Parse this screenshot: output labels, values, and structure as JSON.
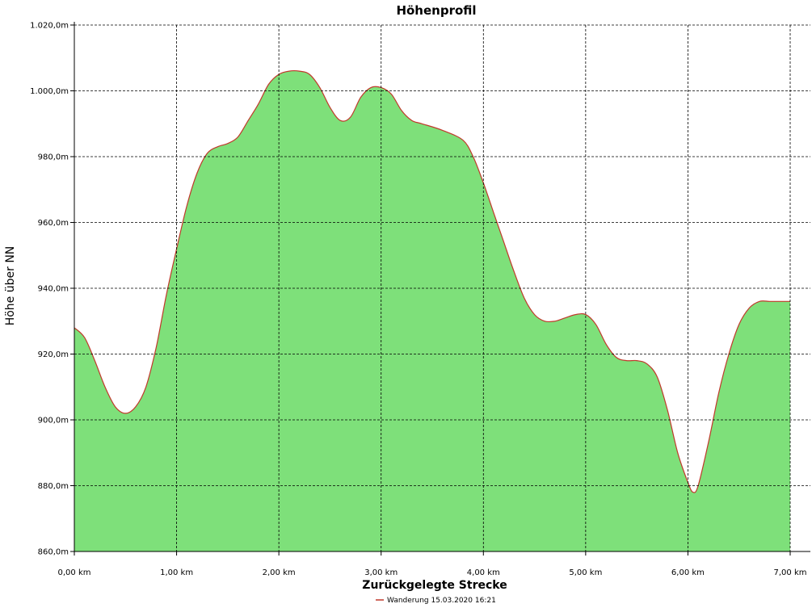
{
  "chart_data": {
    "type": "area",
    "title": "Höhenprofil",
    "xlabel": "Zurückgelegte Strecke",
    "ylabel": "Höhe über NN",
    "xlim": [
      0,
      7
    ],
    "ylim": [
      860,
      1020
    ],
    "x_ticks": [
      0,
      1,
      2,
      3,
      4,
      5,
      6,
      7
    ],
    "x_tick_labels": [
      "0,00 km",
      "1,00 km",
      "2,00 km",
      "3,00 km",
      "4,00 km",
      "5,00 km",
      "6,00 km",
      "7,00 km"
    ],
    "y_ticks": [
      860,
      880,
      900,
      920,
      940,
      960,
      980,
      1000,
      1020
    ],
    "y_tick_labels": [
      "860,0m",
      "880,0m",
      "900,0m",
      "920,0m",
      "940,0m",
      "960,0m",
      "980,0m",
      "1.000,0m",
      "1.020,0m"
    ],
    "grid": true,
    "legend_position": "bottom",
    "series": [
      {
        "name": "Wanderung 15.03.2020 16:21",
        "color": "#c0392b",
        "x": [
          0.0,
          0.1,
          0.2,
          0.3,
          0.4,
          0.5,
          0.6,
          0.7,
          0.8,
          0.9,
          1.0,
          1.1,
          1.2,
          1.3,
          1.4,
          1.5,
          1.6,
          1.7,
          1.8,
          1.9,
          2.0,
          2.1,
          2.2,
          2.3,
          2.4,
          2.5,
          2.6,
          2.7,
          2.8,
          2.9,
          3.0,
          3.1,
          3.2,
          3.3,
          3.4,
          3.6,
          3.8,
          3.9,
          4.0,
          4.1,
          4.2,
          4.3,
          4.4,
          4.5,
          4.6,
          4.7,
          4.8,
          4.9,
          5.0,
          5.1,
          5.2,
          5.3,
          5.4,
          5.5,
          5.6,
          5.7,
          5.8,
          5.9,
          6.0,
          6.05,
          6.1,
          6.2,
          6.3,
          6.4,
          6.5,
          6.6,
          6.7,
          6.8,
          6.9,
          7.0
        ],
        "values": [
          928,
          925,
          918,
          910,
          904,
          902,
          904,
          910,
          922,
          938,
          952,
          965,
          975,
          981,
          983,
          984,
          986,
          991,
          996,
          1002,
          1005,
          1006,
          1006,
          1005,
          1001,
          995,
          991,
          992,
          998,
          1001,
          1001,
          999,
          994,
          991,
          990,
          988,
          985,
          980,
          972,
          963,
          954,
          945,
          937,
          932,
          930,
          930,
          931,
          932,
          932,
          929,
          923,
          919,
          918,
          918,
          917,
          913,
          903,
          890,
          881,
          878,
          880,
          893,
          908,
          920,
          929,
          934,
          936,
          936,
          936,
          936
        ]
      }
    ]
  }
}
